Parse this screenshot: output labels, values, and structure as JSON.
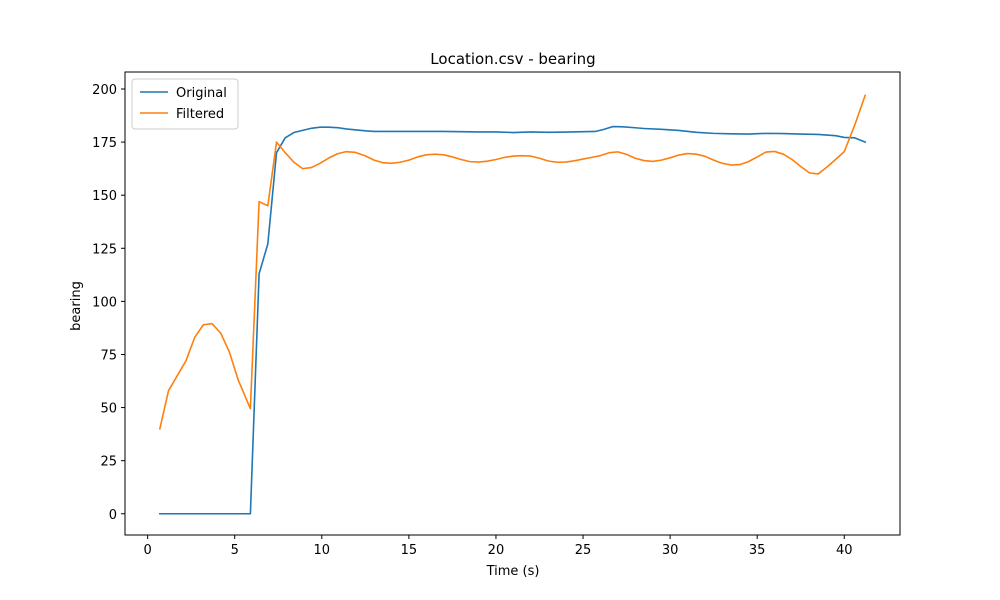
{
  "chart_data": {
    "type": "line",
    "title": "Location.csv - bearing",
    "xlabel": "Time (s)",
    "ylabel": "bearing",
    "xlim": [
      -1.3,
      43.2
    ],
    "ylim": [
      -10,
      208
    ],
    "xticks": [
      0,
      5,
      10,
      15,
      20,
      25,
      30,
      35,
      40
    ],
    "yticks": [
      0,
      25,
      50,
      75,
      100,
      125,
      150,
      175,
      200
    ],
    "grid": false,
    "legend_position": "top-left",
    "series": [
      {
        "name": "Original",
        "color": "#1f77b4",
        "x": [
          0.7,
          1.5,
          2.5,
          3.5,
          4.5,
          5.3,
          5.9,
          6.4,
          6.9,
          7.4,
          7.9,
          8.4,
          8.9,
          9.4,
          9.9,
          10.4,
          10.9,
          11.4,
          11.9,
          12.5,
          13.0,
          14.0,
          15.0,
          16.0,
          17.0,
          18.0,
          19.0,
          20.0,
          21.0,
          22.0,
          23.0,
          24.0,
          25.0,
          25.7,
          26.2,
          26.7,
          27.3,
          27.9,
          28.5,
          29.5,
          30.5,
          31.5,
          32.5,
          33.5,
          34.5,
          35.5,
          36.5,
          37.5,
          38.5,
          39.5,
          40.0,
          40.6,
          41.2
        ],
        "values": [
          0,
          0,
          0,
          0,
          0,
          0,
          0,
          113,
          127,
          170,
          177,
          179.5,
          180.5,
          181.5,
          182,
          182,
          181.8,
          181.2,
          180.8,
          180.3,
          180,
          180,
          180,
          180,
          180,
          179.9,
          179.8,
          179.8,
          179.5,
          179.8,
          179.6,
          179.7,
          179.9,
          180,
          181,
          182.3,
          182.2,
          181.8,
          181.4,
          181,
          180.5,
          179.6,
          179.1,
          178.9,
          178.8,
          179.1,
          179,
          178.8,
          178.6,
          178,
          177.2,
          177,
          175
        ]
      },
      {
        "name": "Filtered",
        "color": "#ff7f0e",
        "x": [
          0.7,
          1.2,
          2.2,
          2.7,
          3.2,
          3.7,
          4.2,
          4.7,
          5.2,
          5.9,
          6.4,
          6.9,
          7.4,
          7.9,
          8.4,
          8.9,
          9.4,
          9.9,
          10.4,
          10.9,
          11.4,
          11.9,
          12.5,
          13.0,
          13.5,
          14.0,
          14.5,
          15.0,
          15.5,
          16.0,
          16.5,
          17.0,
          17.5,
          18.0,
          18.5,
          19.0,
          19.5,
          20.0,
          20.5,
          21.0,
          21.5,
          22.0,
          22.5,
          23.0,
          23.5,
          24.0,
          24.5,
          25.0,
          25.5,
          26.0,
          26.5,
          27.0,
          27.5,
          28.0,
          28.5,
          29.0,
          29.5,
          30.0,
          30.5,
          31.0,
          31.5,
          32.0,
          32.5,
          33.0,
          33.5,
          34.0,
          34.5,
          35.0,
          35.5,
          36.0,
          36.5,
          37.0,
          37.5,
          38.0,
          38.5,
          39.0,
          39.5,
          40.0,
          40.6,
          41.2
        ],
        "values": [
          40,
          58,
          72,
          83,
          89,
          89.5,
          85,
          76,
          63,
          49.5,
          147,
          145,
          175,
          170,
          165.5,
          162.5,
          163,
          165,
          167.5,
          169.5,
          170.5,
          170.2,
          168.5,
          166.5,
          165.3,
          165,
          165.5,
          166.5,
          168,
          169,
          169.3,
          169,
          168,
          166.8,
          165.8,
          165.6,
          166,
          166.8,
          167.8,
          168.4,
          168.6,
          168.4,
          167.4,
          166.1,
          165.5,
          165.6,
          166.2,
          167,
          167.8,
          168.6,
          170,
          170.4,
          169.2,
          167.4,
          166.3,
          165.9,
          166.5,
          167.6,
          168.9,
          169.6,
          169.3,
          168.3,
          166.5,
          165,
          164.2,
          164.4,
          165.8,
          168,
          170.3,
          170.6,
          169.3,
          166.8,
          163.5,
          160.5,
          160,
          163.2,
          166.8,
          170.5,
          183,
          197
        ]
      }
    ]
  }
}
